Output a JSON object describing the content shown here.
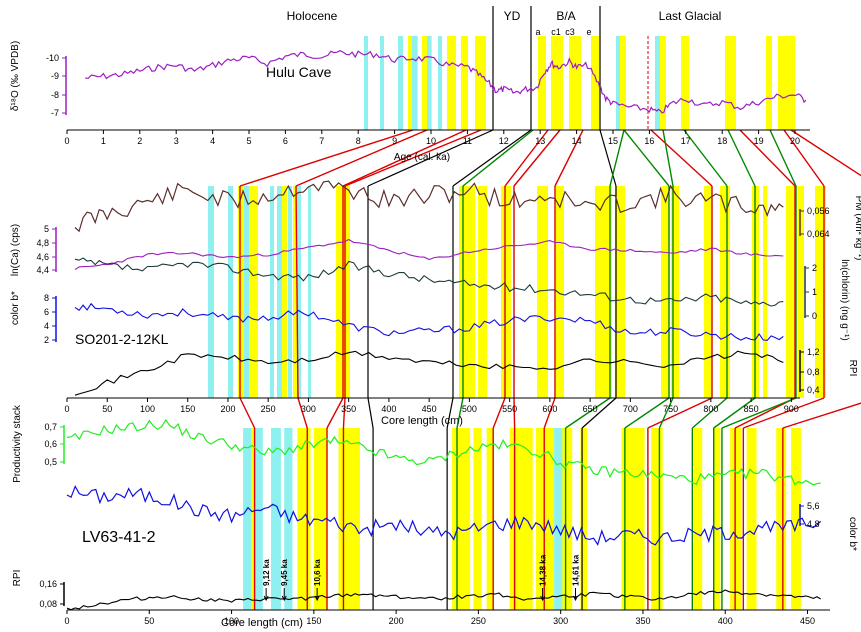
{
  "colors": {
    "yellow": "#ffff00",
    "cyan": "#8ff0f0",
    "hulu": "#9b1fc0",
    "brown": "#5a2e2a",
    "purple": "#9b1fc0",
    "darkteal": "#1b3b3a",
    "blue": "#1010e0",
    "black": "#000000",
    "green": "#22ee22",
    "red": "#dd0000",
    "tiegreen": "#008800"
  },
  "periods": {
    "holocene": "Holocene",
    "yd": "YD",
    "ba": "B/A",
    "last_glacial": "Last Glacial",
    "sub_a": "a",
    "sub_c1": "c1",
    "sub_c3": "c3",
    "sub_e": "e"
  },
  "panel1": {
    "ylabel": "δ¹⁸O (‰ VPDB)",
    "series_label": "Hulu Cave",
    "yticks": [
      "-10",
      "-9",
      "-8",
      "-7"
    ],
    "xlabel": "Age (cal. ka)",
    "xticks": [
      "0",
      "1",
      "2",
      "3",
      "4",
      "5",
      "6",
      "7",
      "8",
      "9",
      "10",
      "11",
      "12",
      "13",
      "14",
      "15",
      "16",
      "17",
      "18",
      "19",
      "20"
    ]
  },
  "panel2": {
    "core_label": "SO201-2-12KL",
    "ylabel_ca": "ln(Ca) (cps)",
    "ca_ticks": [
      "5",
      "4,8",
      "4,6",
      "4,4"
    ],
    "ylabel_colorb": "color b*",
    "colorb_ticks": [
      "8",
      "6",
      "4",
      "2"
    ],
    "ylabel_pm": "PM (Am² kg⁻¹)",
    "pm_ticks": [
      "0,056",
      "0,064"
    ],
    "ylabel_chlorin": "ln(chlorin) (ng g⁻¹)",
    "chlorin_ticks": [
      "2",
      "1",
      "0"
    ],
    "ylabel_rpi": "RPI",
    "rpi_ticks": [
      "1,2",
      "0,8",
      "0,4"
    ],
    "xlabel": "Core length (cm)",
    "xticks": [
      "0",
      "50",
      "100",
      "150",
      "200",
      "250",
      "300",
      "350",
      "400",
      "450",
      "500",
      "550",
      "600",
      "650",
      "700",
      "750",
      "800",
      "850",
      "900"
    ]
  },
  "panel3": {
    "core_label": "LV63-41-2",
    "ylabel_prod": "Productivity stack",
    "prod_ticks": [
      "0,7",
      "0,6",
      "0,5"
    ],
    "ylabel_colorb": "color b*",
    "colorb_ticks": [
      "5,6",
      "4,8"
    ],
    "ylabel_rpi": "RPI",
    "rpi_ticks": [
      "0,16",
      "0,08"
    ],
    "xlabel": "Core length (cm)",
    "xticks": [
      "0",
      "50",
      "100",
      "150",
      "200",
      "250",
      "300",
      "350",
      "400",
      "450"
    ],
    "age_marks": [
      {
        "label": "9,12 ka",
        "cm": 121
      },
      {
        "label": "9,45 ka",
        "cm": 132
      },
      {
        "label": "10,6 ka",
        "cm": 152
      },
      {
        "label": "14,38 ka",
        "cm": 289
      },
      {
        "label": "14,61 ka",
        "cm": 309
      }
    ]
  },
  "chart_data": [
    {
      "type": "line",
      "title": "Hulu Cave",
      "xlabel": "Age (cal. ka)",
      "ylabel": "δ¹⁸O (‰ VPDB)",
      "xlim": [
        0,
        20.4
      ],
      "ylim": [
        -6.5,
        -10.4
      ],
      "y_inverted": true,
      "series": [
        {
          "name": "Hulu Cave",
          "x": [
            0.5,
            1.0,
            1.5,
            2.0,
            2.5,
            3.0,
            3.5,
            4.0,
            4.5,
            5.0,
            5.5,
            6.0,
            6.5,
            7.0,
            7.5,
            8.0,
            8.5,
            9.0,
            9.5,
            10.0,
            10.5,
            11.0,
            11.3,
            11.6,
            11.8,
            12.0,
            12.3,
            12.6,
            12.9,
            13.1,
            13.3,
            13.5,
            13.8,
            14.0,
            14.3,
            14.6,
            14.8,
            15.0,
            15.5,
            16.0,
            16.3,
            16.6,
            17.0,
            17.5,
            18.0,
            18.5,
            19.0,
            19.5,
            20.0,
            20.3
          ],
          "y": [
            -8.9,
            -9.0,
            -9.1,
            -9.3,
            -9.5,
            -9.6,
            -9.3,
            -9.6,
            -9.9,
            -10.0,
            -9.7,
            -10.1,
            -10.2,
            -10.1,
            -10.3,
            -10.2,
            -10.2,
            -9.9,
            -10.0,
            -9.9,
            -9.6,
            -9.5,
            -9.1,
            -8.6,
            -8.2,
            -8.3,
            -8.1,
            -8.3,
            -8.4,
            -9.2,
            -9.7,
            -9.5,
            -9.8,
            -9.5,
            -9.6,
            -8.6,
            -7.8,
            -7.5,
            -7.3,
            -7.2,
            -7.0,
            -7.5,
            -7.8,
            -7.4,
            -7.6,
            -7.3,
            -7.6,
            -7.9,
            -8.0,
            -7.7
          ]
        }
      ]
    },
    {
      "type": "line",
      "title": "SO201-2-12KL",
      "xlabel": "Core length (cm)",
      "xlim": [
        0,
        910
      ],
      "series": [
        {
          "name": "PM",
          "x": [
            10,
            50,
            100,
            150,
            200,
            250,
            300,
            350,
            400,
            450,
            500,
            550,
            600,
            650,
            700,
            750,
            800,
            850,
            890
          ],
          "y": [
            0.062,
            0.06,
            0.058,
            0.056,
            0.058,
            0.057,
            0.055,
            0.056,
            0.058,
            0.057,
            0.056,
            0.058,
            0.057,
            0.059,
            0.058,
            0.057,
            0.058,
            0.059,
            0.059
          ]
        },
        {
          "name": "ln(Ca)",
          "x": [
            10,
            50,
            100,
            150,
            200,
            250,
            300,
            350,
            400,
            450,
            500,
            550,
            600,
            650,
            700,
            750,
            800,
            850,
            890
          ],
          "y": [
            4.42,
            4.48,
            4.62,
            4.64,
            4.58,
            4.62,
            4.72,
            4.82,
            4.68,
            4.55,
            4.66,
            4.74,
            4.8,
            4.7,
            4.68,
            4.64,
            4.7,
            4.62,
            4.6
          ]
        },
        {
          "name": "ln(chlorin)",
          "x": [
            10,
            50,
            100,
            150,
            200,
            250,
            300,
            350,
            400,
            450,
            500,
            550,
            600,
            650,
            700,
            750,
            800,
            850,
            890
          ],
          "y": [
            2.3,
            2.1,
            1.9,
            2.2,
            2.0,
            1.7,
            1.6,
            2.1,
            1.8,
            1.5,
            1.3,
            1.2,
            1.1,
            0.9,
            0.7,
            0.6,
            0.8,
            0.5,
            0.6
          ]
        },
        {
          "name": "color b*",
          "x": [
            10,
            50,
            100,
            150,
            200,
            250,
            300,
            350,
            400,
            450,
            500,
            550,
            600,
            650,
            700,
            750,
            800,
            850,
            890
          ],
          "y": [
            7.3,
            7.0,
            6.3,
            6.6,
            5.8,
            6.0,
            6.6,
            5.0,
            4.2,
            4.4,
            4.8,
            5.6,
            6.0,
            5.6,
            4.2,
            4.4,
            4.0,
            3.6,
            3.8
          ]
        },
        {
          "name": "RPI",
          "x": [
            10,
            50,
            100,
            150,
            200,
            250,
            300,
            350,
            400,
            450,
            500,
            550,
            600,
            650,
            700,
            750,
            800,
            850,
            890
          ],
          "y": [
            0.35,
            0.55,
            0.8,
            1.1,
            1.05,
            0.95,
            1.0,
            1.15,
            1.05,
            0.95,
            0.9,
            0.85,
            0.85,
            1.0,
            0.95,
            0.9,
            1.05,
            1.15,
            0.95
          ]
        }
      ]
    },
    {
      "type": "line",
      "title": "LV63-41-2",
      "xlabel": "Core length (cm)",
      "xlim": [
        0,
        460
      ],
      "series": [
        {
          "name": "Productivity stack",
          "x": [
            0,
            20,
            40,
            60,
            80,
            100,
            120,
            140,
            160,
            180,
            200,
            220,
            240,
            260,
            280,
            300,
            320,
            340,
            360,
            380,
            400,
            420,
            440,
            458
          ],
          "y": [
            0.62,
            0.68,
            0.7,
            0.72,
            0.64,
            0.6,
            0.55,
            0.58,
            0.62,
            0.58,
            0.52,
            0.5,
            0.56,
            0.6,
            0.58,
            0.5,
            0.45,
            0.44,
            0.42,
            0.4,
            0.42,
            0.44,
            0.4,
            0.38
          ]
        },
        {
          "name": "color b*",
          "x": [
            0,
            20,
            40,
            60,
            80,
            100,
            120,
            140,
            160,
            180,
            200,
            220,
            240,
            260,
            280,
            300,
            320,
            340,
            360,
            380,
            400,
            420,
            440,
            458
          ],
          "y": [
            6.0,
            5.8,
            5.9,
            5.7,
            5.3,
            5.1,
            5.4,
            5.0,
            4.9,
            4.6,
            4.8,
            4.5,
            4.5,
            4.8,
            4.9,
            4.6,
            4.3,
            4.4,
            4.3,
            4.4,
            4.5,
            4.6,
            4.7,
            4.9
          ]
        },
        {
          "name": "RPI",
          "x": [
            0,
            20,
            40,
            60,
            80,
            100,
            120,
            140,
            160,
            180,
            200,
            220,
            240,
            260,
            280,
            300,
            320,
            340,
            360,
            380,
            400,
            420,
            440,
            458
          ],
          "y": [
            0.06,
            0.08,
            0.1,
            0.11,
            0.1,
            0.09,
            0.1,
            0.1,
            0.11,
            0.12,
            0.11,
            0.1,
            0.11,
            0.12,
            0.1,
            0.11,
            0.12,
            0.11,
            0.1,
            0.12,
            0.13,
            0.12,
            0.11,
            0.1
          ]
        }
      ]
    }
  ]
}
